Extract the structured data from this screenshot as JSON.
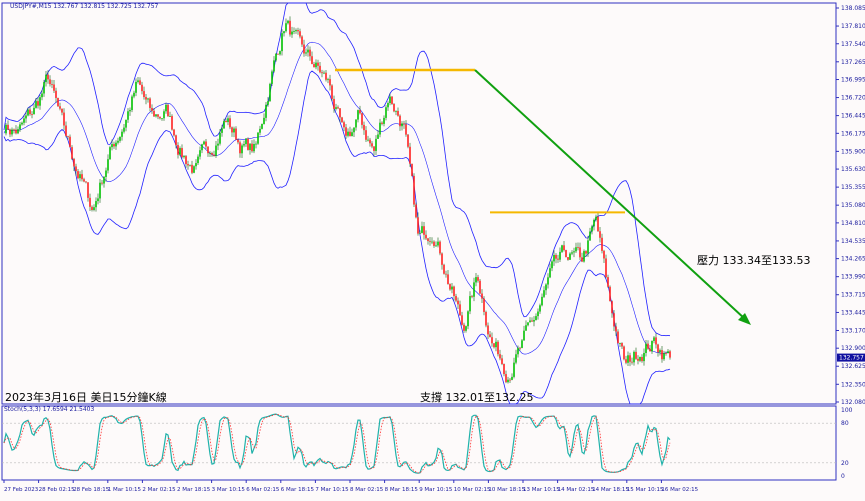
{
  "header": {
    "symbol_info": "USDJPY#,M15  132.767 132.815 132.725 132.757",
    "stoch_info": "Stoch(5,3,3) 17.6594 21.5403"
  },
  "annotations": {
    "title": "2023年3月16日 美日15分鐘K線",
    "resistance": "壓力 133.34至133.53",
    "support": "支撐 132.01至132.25",
    "resistance_line_levels": [
      137.14,
      134.97
    ]
  },
  "chart_data": {
    "type": "candlestick",
    "symbol": "USDJPY#",
    "timeframe": "M15",
    "current_price": "132.757",
    "y_ticks": [
      "138.085",
      "137.810",
      "137.540",
      "137.265",
      "136.995",
      "136.720",
      "136.445",
      "136.175",
      "135.900",
      "135.630",
      "135.355",
      "135.080",
      "134.810",
      "134.535",
      "134.265",
      "133.990",
      "133.715",
      "133.445",
      "133.170",
      "132.900",
      "132.625",
      "132.350",
      "132.080"
    ],
    "ylim": [
      132.08,
      138.085
    ],
    "x_ticks": [
      "27 Feb 2023",
      "28 Feb 02:15",
      "28 Feb 18:15",
      "1 Mar 10:15",
      "2 Mar 02:15",
      "2 Mar 18:15",
      "3 Mar 10:15",
      "6 Mar 02:15",
      "6 Mar 18:15",
      "7 Mar 10:15",
      "8 Mar 02:15",
      "8 Mar 18:15",
      "9 Mar 10:15",
      "10 Mar 02:15",
      "10 Mar 18:15",
      "13 Mar 10:15",
      "14 Mar 02:15",
      "14 Mar 18:15",
      "15 Mar 10:15",
      "16 Mar 02:15"
    ],
    "approx_close_path": [
      136.3,
      136.2,
      136.5,
      137.0,
      136.2,
      135.6,
      135.0,
      135.8,
      136.3,
      136.9,
      136.4,
      136.5,
      135.9,
      135.6,
      136.0,
      136.4,
      136.0,
      135.9,
      137.0,
      137.9,
      137.4,
      137.2,
      136.9,
      136.0,
      136.4,
      135.9,
      136.8,
      136.3,
      134.5,
      134.8,
      134.0,
      133.2,
      134.0,
      133.0,
      132.6,
      132.9,
      133.4,
      134.0,
      134.3,
      134.2,
      134.8,
      133.5,
      132.6,
      132.9,
      133.0,
      132.757
    ],
    "indicators": [
      "Bollinger Bands",
      "Stochastic(5,3,3)"
    ],
    "stoch_levels": [
      "100",
      "80",
      "20",
      "0"
    ],
    "colors": {
      "up": "#00c000",
      "down": "#ff2020",
      "bands": "#2020ff",
      "resistance": "#f5b800",
      "trend": "#10a010",
      "stoch_main": "#20b2aa",
      "stoch_signal": "#ff3030",
      "axis": "#3030c0"
    }
  }
}
